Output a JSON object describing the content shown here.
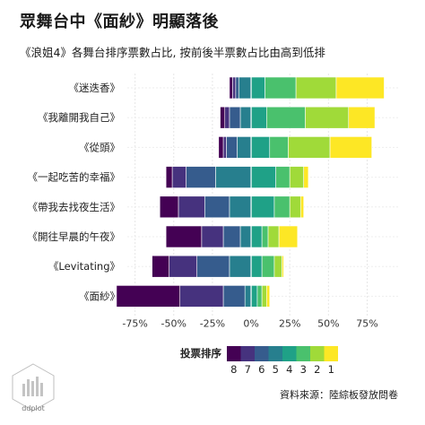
{
  "title": "眾舞台中《面紗》明顯落後",
  "subtitle": "《浪姐4》各舞台排序票數占比, 按前後半票數占比由高到低排",
  "caption": "資料來源：陸綜板發放問卷",
  "logo_text": "ddplot",
  "chart_data": {
    "type": "bar",
    "stacked": "diverging",
    "categories": [
      "《迷迭香》",
      "《我離開我自己》",
      "《從頭》",
      "《一起吃苦的幸福》",
      "《帶我去找夜生活》",
      "《開往早晨的午夜》",
      "《Levitating》",
      "《面紗》"
    ],
    "x_ticks": [
      "-75%",
      "-50%",
      "-25%",
      "0%",
      "25%",
      "50%",
      "75%"
    ],
    "xlim": [
      -0.8,
      0.95
    ],
    "legend": {
      "title": "投票排序",
      "position": "bottom",
      "labels": [
        "8",
        "7",
        "6",
        "5",
        "4",
        "3",
        "2",
        "1"
      ]
    },
    "colors": [
      "#440154",
      "#46327e",
      "#365c8d",
      "#277f8e",
      "#1fa187",
      "#4ac16d",
      "#a0da39",
      "#fde725"
    ],
    "series": [
      {
        "name": "8",
        "values": [
          0.02,
          0.03,
          0.03,
          0.04,
          0.12,
          0.23,
          0.11,
          0.41
        ]
      },
      {
        "name": "7",
        "values": [
          0.02,
          0.03,
          0.02,
          0.09,
          0.17,
          0.14,
          0.18,
          0.28
        ]
      },
      {
        "name": "6",
        "values": [
          0.02,
          0.07,
          0.07,
          0.19,
          0.16,
          0.11,
          0.21,
          0.14
        ]
      },
      {
        "name": "5",
        "values": [
          0.08,
          0.07,
          0.09,
          0.23,
          0.14,
          0.07,
          0.14,
          0.04
        ]
      },
      {
        "name": "4",
        "values": [
          0.09,
          0.1,
          0.12,
          0.16,
          0.15,
          0.07,
          0.07,
          0.04
        ]
      },
      {
        "name": "3",
        "values": [
          0.2,
          0.25,
          0.12,
          0.09,
          0.1,
          0.04,
          0.08,
          0.03
        ]
      },
      {
        "name": "2",
        "values": [
          0.26,
          0.28,
          0.27,
          0.09,
          0.07,
          0.07,
          0.05,
          0.03
        ]
      },
      {
        "name": "1",
        "values": [
          0.31,
          0.17,
          0.27,
          0.03,
          0.02,
          0.12,
          0.01,
          0.02
        ]
      }
    ]
  }
}
